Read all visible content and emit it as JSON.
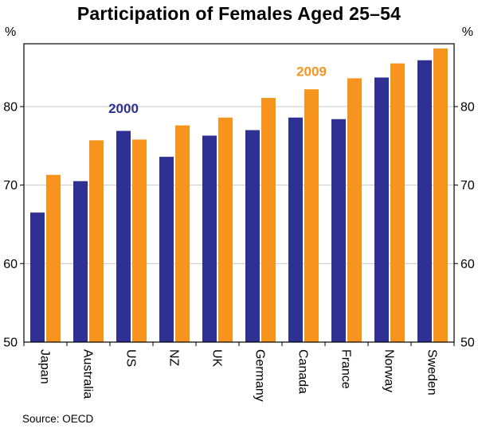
{
  "title": "Participation of Females Aged 25–54",
  "y_axis_unit_left": "%",
  "y_axis_unit_right": "%",
  "source": "Source: OECD",
  "chart_data": {
    "type": "bar",
    "title": "Participation of Females Aged 25–54",
    "ylabel": "%",
    "categories": [
      "Japan",
      "Australia",
      "US",
      "NZ",
      "UK",
      "Germany",
      "Canada",
      "France",
      "Norway",
      "Sweden"
    ],
    "series": [
      {
        "name": "2000",
        "color": "#2E3192",
        "values": [
          66.5,
          70.5,
          76.9,
          73.6,
          76.3,
          77.0,
          78.6,
          78.4,
          83.7,
          85.9
        ],
        "label": {
          "text": "2000",
          "category_index": 2,
          "value": 79.2
        }
      },
      {
        "name": "2009",
        "color": "#F7941E",
        "values": [
          71.3,
          75.7,
          75.8,
          77.6,
          78.6,
          81.1,
          82.2,
          83.6,
          85.5,
          87.4
        ],
        "label": {
          "text": "2009",
          "category_index": 6,
          "value": 83.9
        }
      }
    ],
    "ylim": [
      50,
      88
    ],
    "yticks": [
      50,
      60,
      70,
      80
    ],
    "gridlines": [
      60,
      70,
      80
    ],
    "grid": true,
    "legend_position": "in-plot-annotations"
  }
}
